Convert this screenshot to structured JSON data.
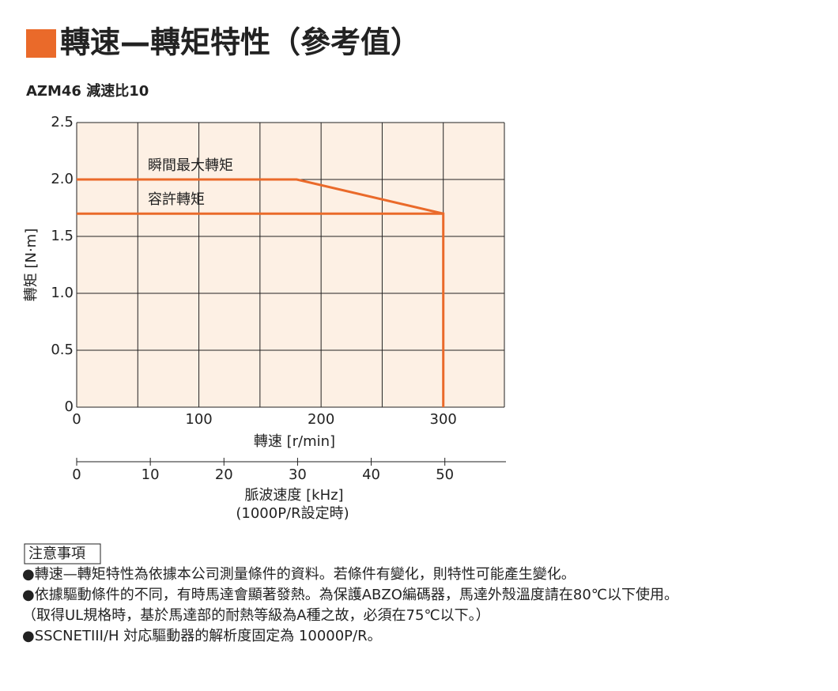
{
  "header": {
    "title": "轉速—轉矩特性（參考值）"
  },
  "chart_data": {
    "type": "line",
    "title": "AZM46 減速比10",
    "xlabel": "轉速 [r/min]",
    "ylabel": "轉矩 [N·m]",
    "xlim": [
      0,
      350
    ],
    "xticks": [
      0,
      100,
      200,
      300
    ],
    "x_minor_grid": [
      50,
      150,
      250,
      350
    ],
    "ylim": [
      0,
      2.5
    ],
    "yticks": [
      0,
      0.5,
      {
        "value": 1,
        "label": "1.0"
      },
      1.5,
      {
        "value": 2,
        "label": "2.0"
      },
      2.5
    ],
    "grid": true,
    "x2label": "脈波速度 [kHz]",
    "x2label_note": "(1000P/R設定時)",
    "x2lim": [
      0,
      58.3
    ],
    "x2ticks": [
      0,
      10,
      20,
      30,
      40,
      50
    ],
    "series": [
      {
        "name": "瞬間最大轉矩",
        "color": "#ea6a2a",
        "x": [
          0,
          180,
          300
        ],
        "values": [
          2.0,
          2.0,
          1.7
        ]
      },
      {
        "name": "容許轉矩",
        "color": "#ea6a2a",
        "x": [
          0,
          300,
          300
        ],
        "values": [
          1.7,
          1.7,
          0
        ]
      }
    ]
  },
  "notes": {
    "heading": "注意事項",
    "items": [
      "●轉速—轉矩特性為依據本公司測量條件的資料。若條件有變化，則特性可能產生變化。",
      "●依據驅動條件的不同，有時馬達會顯著發熱。為保護ABZO編碼器，馬達外殼溫度請在80℃以下使用。",
      "（取得UL規格時，基於馬達部的耐熱等級為A種之故，必須在75℃以下。）",
      "●SSCNETIII/H 対応驅動器的解析度固定為 10000P/R。"
    ]
  }
}
